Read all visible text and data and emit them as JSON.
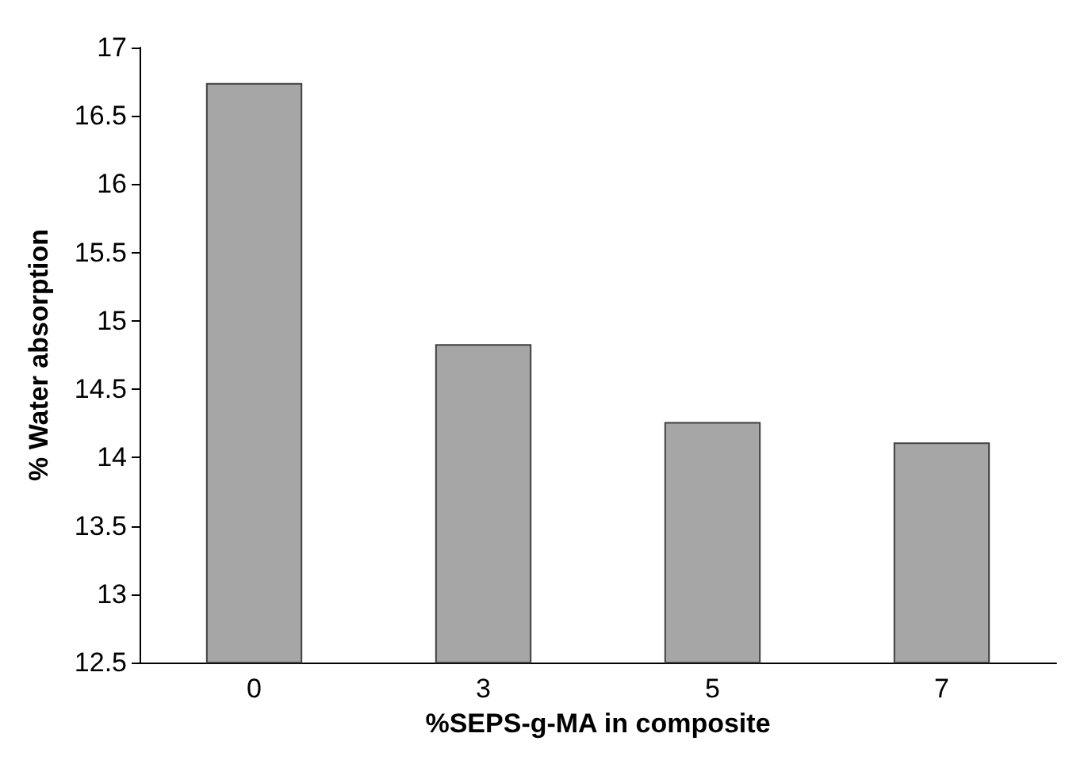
{
  "chart_data": {
    "type": "bar",
    "xlabel": "%SEPS-g-MA in composite",
    "ylabel": "% Water absorption",
    "categories": [
      "0",
      "3",
      "5",
      "7"
    ],
    "values": [
      16.74,
      14.83,
      14.26,
      14.11
    ],
    "color": "#a6a6a6",
    "ylim": [
      12.5,
      17
    ],
    "yticks": [
      12.5,
      13,
      13.5,
      14,
      14.5,
      15,
      15.5,
      16,
      16.5,
      17
    ],
    "grid": false
  }
}
